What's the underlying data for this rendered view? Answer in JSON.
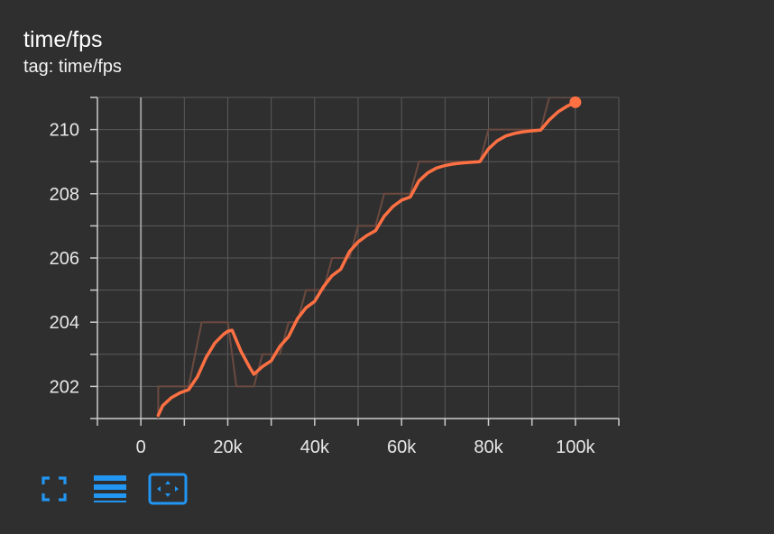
{
  "card": {
    "title": "time/fps",
    "tag": "tag: time/fps"
  },
  "toolbar": {
    "buttons": [
      {
        "icon": "fullscreen-icon"
      },
      {
        "icon": "data-table-icon"
      },
      {
        "icon": "fit-domain-icon"
      }
    ]
  },
  "colors": {
    "background": "#2f2f2f",
    "grid": "#5a5a5a",
    "axis": "#cccccc",
    "smoothed": "#ff7043",
    "raw": "#6b4a40",
    "accent": "#2196f3"
  },
  "chart_data": {
    "type": "line",
    "title": "time/fps",
    "xlim": [
      -10000,
      110000
    ],
    "ylim": [
      201,
      211
    ],
    "x_ticks": [
      0,
      20000,
      40000,
      60000,
      80000,
      100000
    ],
    "x_tick_labels": [
      "0",
      "20k",
      "40k",
      "60k",
      "80k",
      "100k"
    ],
    "y_ticks": [
      202,
      204,
      206,
      208,
      210
    ],
    "y_tick_labels": [
      "202",
      "204",
      "206",
      "208",
      "210"
    ],
    "grid": true,
    "series": [
      {
        "role": "raw",
        "x": [
          4000,
          4000,
          11000,
          14000,
          20000,
          22000,
          26000,
          28000,
          32000,
          34000,
          36000,
          38000,
          40000,
          42000,
          44000,
          46000,
          48000,
          50000,
          52000,
          54000,
          56000,
          58000,
          60000,
          62000,
          64000,
          66000,
          68000,
          70000,
          72000,
          74000,
          76000,
          78000,
          80000,
          82000,
          84000,
          86000,
          88000,
          90000,
          92000,
          94000,
          96000,
          98000,
          100000
        ],
        "y": [
          201,
          202,
          202,
          204,
          204,
          202,
          202,
          203,
          203,
          204,
          204,
          205,
          205,
          205,
          206,
          206,
          206,
          207,
          207,
          207,
          208,
          208,
          208,
          208,
          209,
          209,
          209,
          209,
          209,
          209,
          209,
          209,
          210,
          210,
          210,
          210,
          210,
          210,
          210,
          211,
          211,
          211,
          211
        ]
      },
      {
        "role": "smoothed",
        "x": [
          4000,
          5000,
          7000,
          9000,
          11000,
          13000,
          15000,
          17000,
          19000,
          20000,
          21000,
          23000,
          25000,
          26000,
          28000,
          30000,
          32000,
          34000,
          36000,
          38000,
          40000,
          42000,
          44000,
          46000,
          48000,
          50000,
          52000,
          54000,
          56000,
          58000,
          60000,
          62000,
          64000,
          66000,
          68000,
          70000,
          72000,
          74000,
          76000,
          78000,
          80000,
          82000,
          84000,
          86000,
          88000,
          90000,
          92000,
          94000,
          96000,
          98000,
          100000
        ],
        "y": [
          201.1,
          201.4,
          201.65,
          201.8,
          201.9,
          202.3,
          202.9,
          203.35,
          203.62,
          203.72,
          203.75,
          203.1,
          202.6,
          202.38,
          202.62,
          202.8,
          203.25,
          203.55,
          204.1,
          204.45,
          204.65,
          205.1,
          205.45,
          205.65,
          206.2,
          206.5,
          206.7,
          206.85,
          207.3,
          207.6,
          207.8,
          207.9,
          208.4,
          208.65,
          208.8,
          208.88,
          208.93,
          208.96,
          208.98,
          209.0,
          209.4,
          209.65,
          209.8,
          209.88,
          209.93,
          209.96,
          209.98,
          210.3,
          210.55,
          210.72,
          210.85
        ]
      }
    ]
  }
}
